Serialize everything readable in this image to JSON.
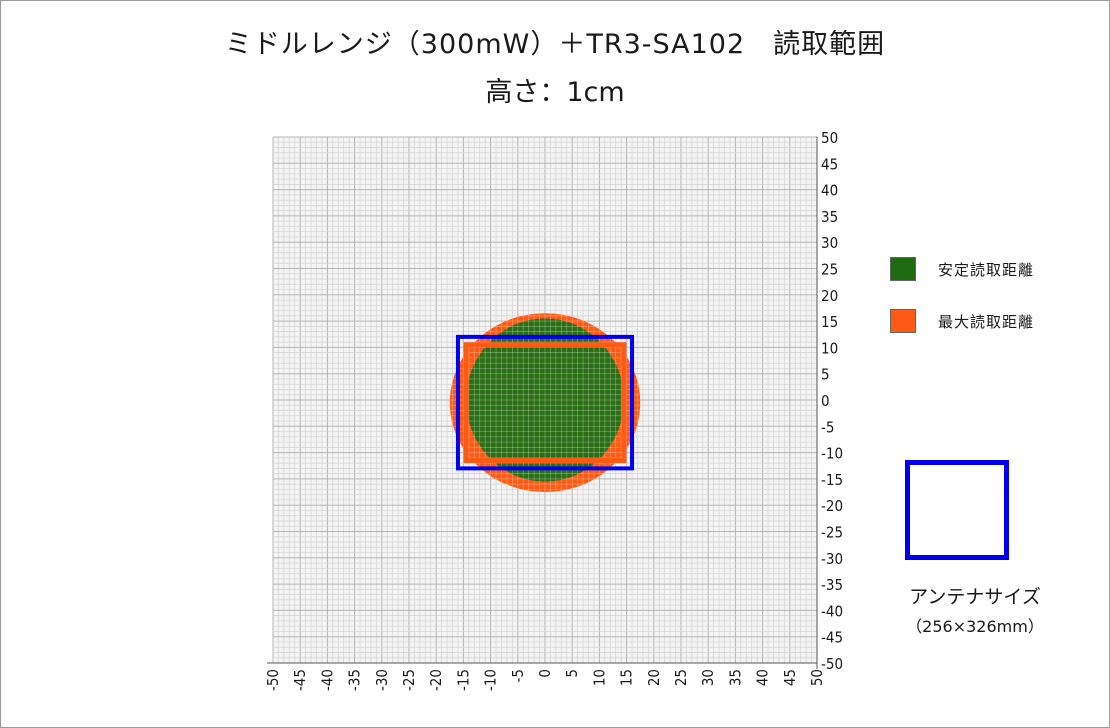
{
  "chart_data": {
    "type": "heatmap",
    "title": "ミドルレンジ（300mW）＋TR3-SA102　読取範囲",
    "subtitle": "高さ：1cm",
    "xlim": [
      -50,
      50
    ],
    "ylim": [
      -50,
      50
    ],
    "x_ticks": [
      "-50",
      "-45",
      "-40",
      "-35",
      "-30",
      "-25",
      "-20",
      "-15",
      "-10",
      "-5",
      "0",
      "5",
      "10",
      "15",
      "20",
      "25",
      "30",
      "35",
      "40",
      "45",
      "50"
    ],
    "y_ticks": [
      "50",
      "45",
      "40",
      "35",
      "30",
      "25",
      "20",
      "15",
      "10",
      "5",
      "0",
      "-5",
      "-10",
      "-15",
      "-20",
      "-25",
      "-30",
      "-35",
      "-40",
      "-45",
      "-50"
    ],
    "grid": true,
    "legend_position": "right",
    "series": [
      {
        "name": "安定読取距離",
        "color": "#2a6e16",
        "region": {
          "x": [
            -14.5,
            14.5
          ],
          "y": [
            -15.5,
            15.5
          ]
        }
      },
      {
        "name": "最大読取距離",
        "color": "#ff5a14",
        "region": {
          "x": [
            -17.5,
            17.5
          ],
          "y": [
            -17.5,
            16.5
          ]
        }
      }
    ],
    "antenna": {
      "label": "アンテナサイズ",
      "size_label": "（256×326mm）",
      "color": "#0000ee",
      "rect": {
        "x": [
          -16,
          16
        ],
        "y": [
          -13,
          12
        ]
      }
    }
  }
}
